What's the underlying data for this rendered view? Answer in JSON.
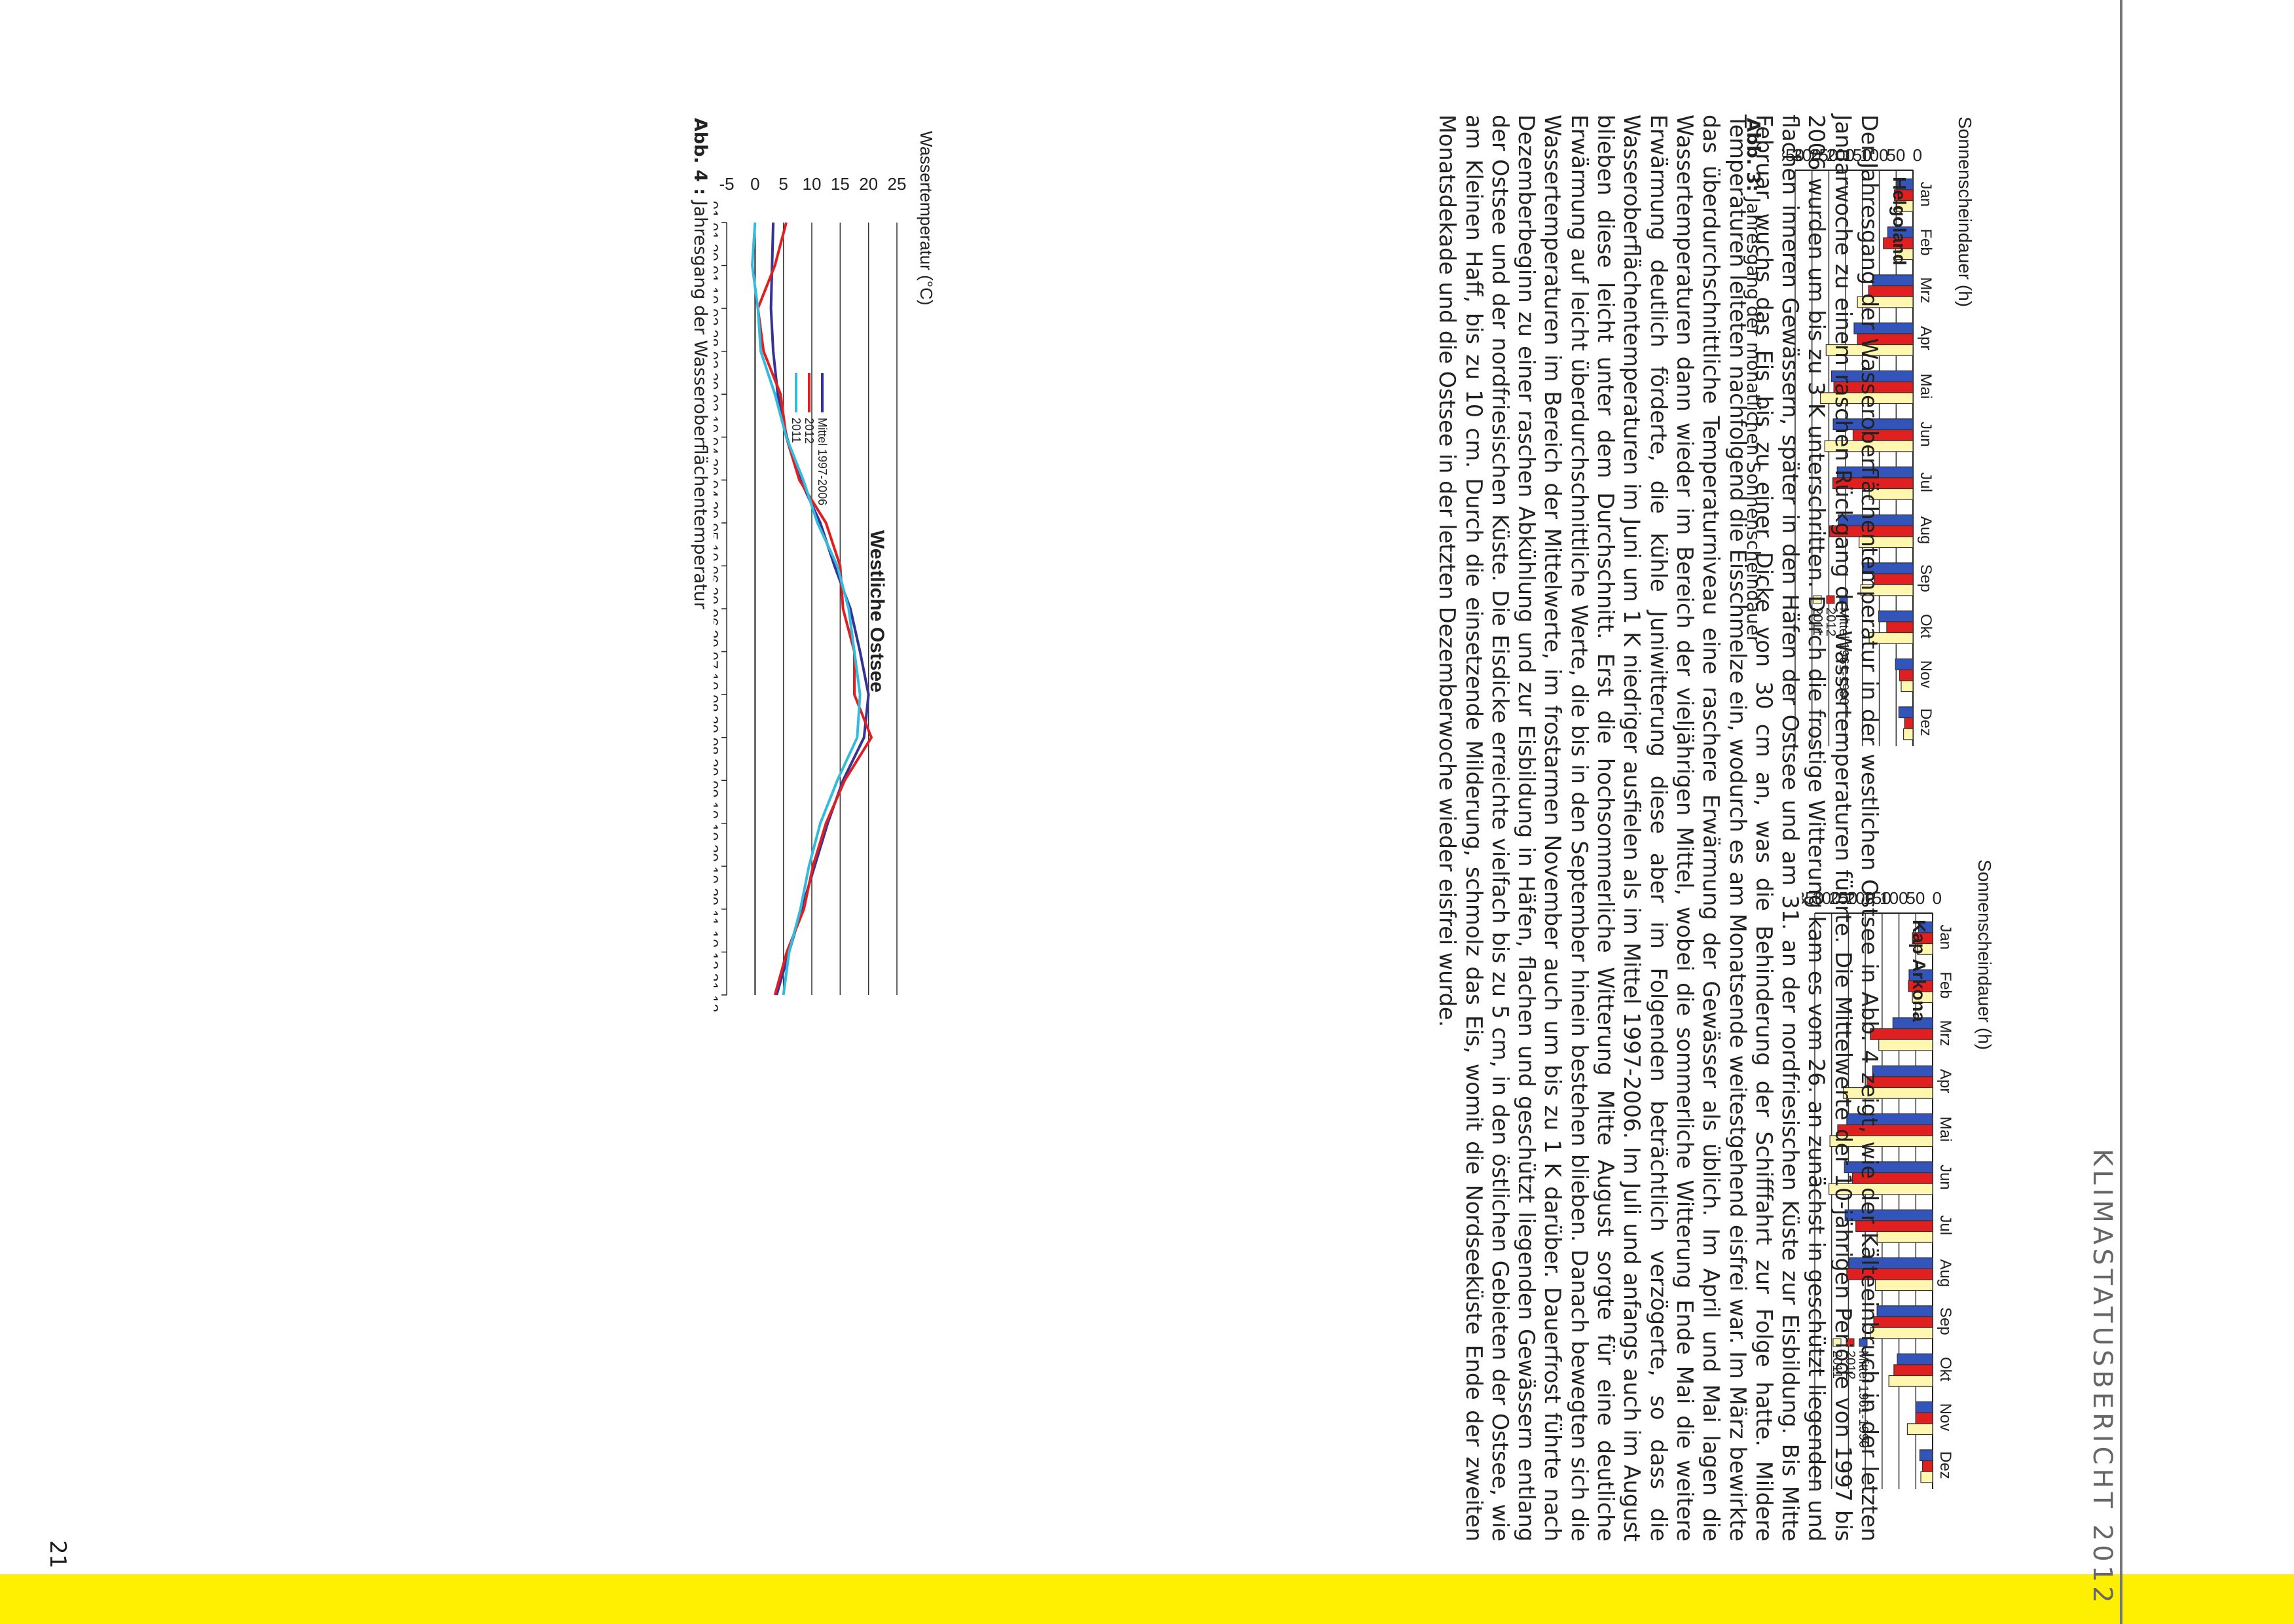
{
  "page": {
    "header": "KLIMASTATUSBERICHT 2012",
    "page_number": "21",
    "body_text": "Der Jahresgang der Wasseroberflächentemperatur in der westlichen Ostsee in Abb. 4 zeigt, wie der Kälteeinbruch in der letzten Januarwoche zu einem raschen Rückgang der Wassertemperaturen führte. Die Mittelwerte der 10-jährigen Periode von 1997 bis 2006 wurden um bis zu 3 K unterschritten. Durch die frostige Witterung kam es vom 26. an zunächst in geschützt liegenden und flachen inneren Gewässern, später in den Häfen der Ostsee und am 31. an der nordfriesischen Küste zur Eisbildung. Bis Mitte Februar wuchs das Eis bis zu einer Dicke von 30 cm an, was die Behinderung der Schifffahrt zur Folge hatte. Mildere Temperaturen leiteten nachfolgend die Eisschmelze ein, wodurch es am Monatsende weitestgehend eisfrei war. Im März bewirkte das überdurchschnittliche Temperaturniveau eine raschere Erwärmung der Gewässer als üblich. Im April und Mai lagen die Wassertemperaturen dann wieder im Bereich der vieljährigen Mittel, wobei die sommerliche Witterung Ende Mai die weitere Erwärmung deutlich förderte, die kühle Juniwitterung diese aber im Folgenden beträchtlich verzögerte, so dass die Wasseroberflächentemperaturen im Juni um 1 K niedriger ausfielen als im Mittel 1997-2006. Im Juli und anfangs auch im August blieben diese leicht unter dem Durchschnitt. Erst die hochsommerliche Witterung Mitte August sorgte für eine deutliche Erwärmung auf leicht überdurchschnittliche Werte, die bis in den September hinein bestehen blieben. Danach bewegten sich die Wassertemperaturen im Bereich der Mittelwerte, im frostarmen November auch um bis zu 1 K darüber. Dauerfrost führte nach Dezemberbeginn zu einer raschen Abkühlung und zur Eisbildung in Häfen, flachen und geschützt liegenden Gewässern entlang der Ostsee und der nordfriesischen Küste. Die Eisdicke erreichte vielfach bis zu 5 cm, in den östlichen Gebieten der Ostsee, wie am Kleinen Haff, bis zu 10 cm. Durch die einsetzende Milderung, schmolz das Eis, womit die Nordseeküste Ende der zweiten Monatsdekade und die Ostsee in der letzten Dezemberwoche wieder eisfrei wurde."
  },
  "captions": {
    "abb3_label": "Abb. 3:",
    "abb3_text": " Jahresgang der monatlichen Sonnenscheindauer",
    "abb4_label": "Abb. 4 :",
    "abb4_text": " Jahresgang der Wasseroberflächentemperatur"
  },
  "chart_data": [
    {
      "type": "bar",
      "title": "Helgoland",
      "ylabel": "Sonnenscheindauer (h)",
      "ylim": [
        0,
        350
      ],
      "yticks": [
        0,
        50,
        100,
        150,
        200,
        250,
        300,
        350
      ],
      "categories": [
        "Jan",
        "Feb",
        "Mrz",
        "Apr",
        "Mai",
        "Jun",
        "Jul",
        "Aug",
        "Sep",
        "Okt",
        "Nov",
        "Dez"
      ],
      "legend": "right",
      "series": [
        {
          "name": "Mittel 1961-1990",
          "color": "#3355bb",
          "values": [
            47,
            75,
            120,
            175,
            242,
            237,
            225,
            222,
            148,
            102,
            52,
            42
          ]
        },
        {
          "name": "2012",
          "color": "#e02020",
          "values": [
            55,
            88,
            132,
            165,
            235,
            178,
            238,
            248,
            115,
            78,
            40,
            25
          ]
        },
        {
          "name": "2011",
          "color": "#fff7b0",
          "values": [
            48,
            52,
            165,
            258,
            275,
            262,
            130,
            160,
            155,
            130,
            35,
            28
          ]
        }
      ]
    },
    {
      "type": "bar",
      "title": "Kap Arkona",
      "ylabel": "Sonnenscheindauer (h)",
      "ylim": [
        0,
        350
      ],
      "yticks": [
        0,
        50,
        100,
        150,
        200,
        250,
        300,
        350
      ],
      "categories": [
        "Jan",
        "Feb",
        "Mrz",
        "Apr",
        "Mai",
        "Jun",
        "Jul",
        "Aug",
        "Sep",
        "Okt",
        "Nov",
        "Dez"
      ],
      "legend": "right",
      "series": [
        {
          "name": "Mittel 1961-1990",
          "color": "#3355bb",
          "values": [
            42,
            70,
            118,
            178,
            255,
            262,
            260,
            248,
            165,
            105,
            50,
            38
          ]
        },
        {
          "name": "2012",
          "color": "#e02020",
          "values": [
            60,
            72,
            185,
            195,
            282,
            238,
            228,
            255,
            175,
            115,
            50,
            30
          ]
        },
        {
          "name": "2011",
          "color": "#fff7b0",
          "values": [
            45,
            60,
            160,
            265,
            305,
            308,
            165,
            170,
            185,
            130,
            75,
            35
          ]
        }
      ]
    },
    {
      "type": "line",
      "title": "Westliche Ostsee",
      "ylabel": "Wassertemperatur (°C)",
      "ylim": [
        -5,
        25
      ],
      "yticks": [
        -5,
        0,
        5,
        10,
        15,
        20,
        25
      ],
      "xlabels": [
        "01.01.",
        "20.01.",
        "10.02.",
        "28.02.",
        "20.03.",
        "10.04.",
        "30.04.",
        "20.05.",
        "10.06.",
        "30.06.",
        "20.07.",
        "10.08.",
        "30.08.",
        "20.09.",
        "10.10.",
        "30.10.",
        "20.11.",
        "10.12.",
        "31.12."
      ],
      "legend": "inside",
      "series": [
        {
          "name": "Mittel 1997-2006",
          "color": "#333399",
          "values": [
            3.2,
            3.0,
            2.8,
            3.2,
            4.0,
            5.6,
            8.0,
            11.5,
            14.0,
            16.8,
            18.5,
            20.0,
            19.2,
            15.5,
            12.8,
            10.5,
            8.2,
            6.0,
            3.8
          ]
        },
        {
          "name": "2012",
          "color": "#e02020",
          "values": [
            5.5,
            3.5,
            0.5,
            1.5,
            4.5,
            5.5,
            7.8,
            12.5,
            15.0,
            15.5,
            17.5,
            17.5,
            20.5,
            15.8,
            12.5,
            10.2,
            8.6,
            5.6,
            3.5
          ]
        },
        {
          "name": "2011",
          "color": "#33bbdd",
          "values": [
            0.0,
            -0.5,
            0.5,
            1.0,
            3.5,
            5.5,
            8.5,
            11.0,
            14.5,
            16.5,
            17.5,
            18.5,
            18.0,
            14.5,
            11.5,
            9.5,
            8.0,
            6.0,
            5.0
          ]
        }
      ]
    }
  ]
}
